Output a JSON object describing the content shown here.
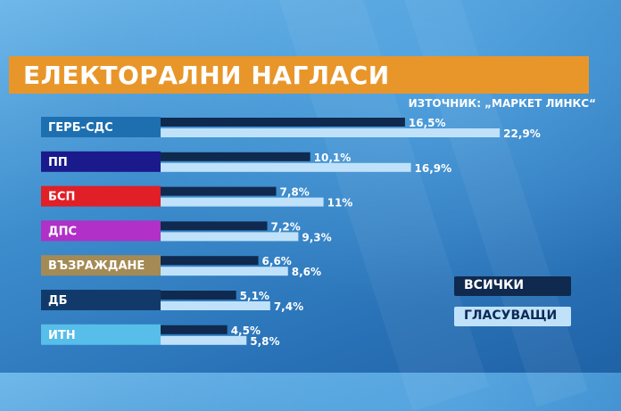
{
  "header": {
    "title": "ЕЛЕКТОРАЛНИ НАГЛАСИ",
    "source": "ИЗТОЧНИК: „МАРКЕТ ЛИНКС“"
  },
  "legend": {
    "all": "ВСИЧКИ",
    "voters": "ГЛАСУВАЩИ"
  },
  "colors": {
    "banner": "#e8962a",
    "series_all": "#10294f",
    "series_voters": "#bfe2fa",
    "party_gerb": "#1d6fb0",
    "party_pp": "#1a1a8c",
    "party_bsp": "#e01f26",
    "party_dps": "#b030c8",
    "party_vazrazhdane": "#a48a55",
    "party_db": "#113a6b",
    "party_itn": "#57bde9"
  },
  "chart_data": {
    "type": "bar",
    "orientation": "horizontal",
    "title": "ЕЛЕКТОРАЛНИ НАГЛАСИ",
    "categories": [
      "ГЕРБ-СДС",
      "ПП",
      "БСП",
      "ДПС",
      "ВЪЗРАЖДАНЕ",
      "ДБ",
      "ИТН"
    ],
    "category_colors": [
      "#1d6fb0",
      "#1a1a8c",
      "#e01f26",
      "#b030c8",
      "#a48a55",
      "#113a6b",
      "#57bde9"
    ],
    "series": [
      {
        "name": "ВСИЧКИ",
        "color": "#10294f",
        "values": [
          16.5,
          10.1,
          7.8,
          7.2,
          6.6,
          5.1,
          4.5
        ],
        "labels": [
          "16,5%",
          "10,1%",
          "7,8%",
          "7,2%",
          "6,6%",
          "5,1%",
          "4,5%"
        ]
      },
      {
        "name": "ГЛАСУВАЩИ",
        "color": "#bfe2fa",
        "values": [
          22.9,
          16.9,
          11,
          9.3,
          8.6,
          7.4,
          5.8
        ],
        "labels": [
          "22,9%",
          "16,9%",
          "11%",
          "9,3%",
          "8,6%",
          "7,4%",
          "5,8%"
        ]
      }
    ],
    "legend_position": "bottom-right",
    "grid": false
  }
}
